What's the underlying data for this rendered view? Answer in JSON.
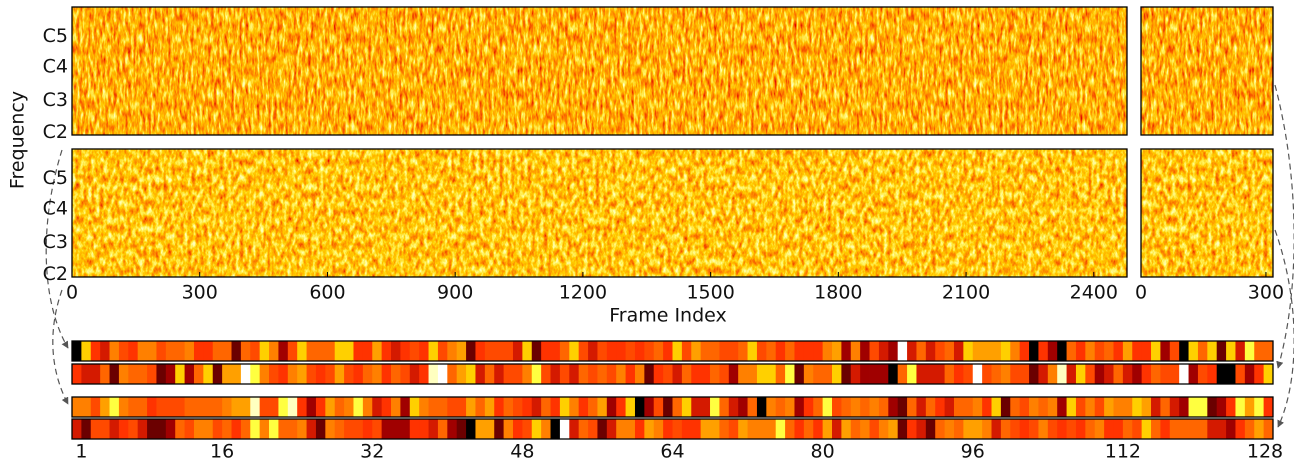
{
  "spectrogram": {
    "y_label": "Frequency",
    "y_ticks": [
      "C5",
      "C4",
      "C3",
      "C2"
    ],
    "x_label": "Frame Index",
    "x_range": [
      0,
      2478
    ],
    "x_ticks": [
      0,
      300,
      600,
      900,
      1200,
      1500,
      1800,
      2100,
      2400
    ],
    "side_x_range": [
      0,
      317
    ],
    "side_x_ticks": [
      0,
      300
    ]
  },
  "embedding": {
    "x_range": [
      0,
      128
    ],
    "x_ticks": [
      1,
      16,
      32,
      48,
      64,
      80,
      96,
      112,
      128
    ]
  }
}
